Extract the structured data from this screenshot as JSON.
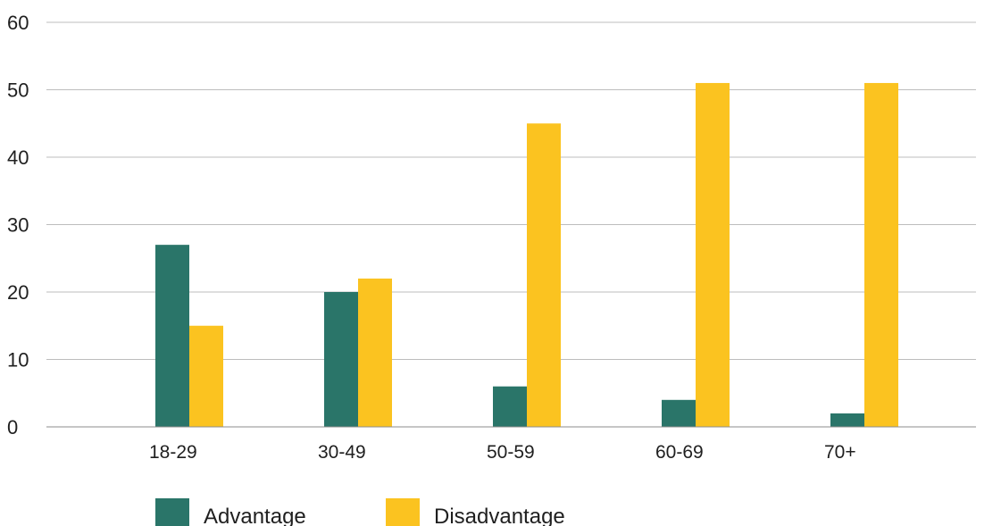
{
  "chart_data": {
    "type": "bar",
    "title": "",
    "xlabel": "",
    "ylabel": "",
    "categories": [
      "18-29",
      "30-49",
      "50-59",
      "60-69",
      "70+"
    ],
    "series": [
      {
        "name": "Advantage",
        "values": [
          27,
          20,
          6,
          4,
          2
        ],
        "color": "#2a7569"
      },
      {
        "name": "Disadvantage",
        "values": [
          15,
          22,
          45,
          51,
          51
        ],
        "color": "#fbc320"
      }
    ],
    "ylim": [
      0,
      60
    ],
    "yticks": [
      0,
      10,
      20,
      30,
      40,
      50,
      60
    ],
    "grid": true,
    "legend_position": "bottom-left"
  }
}
